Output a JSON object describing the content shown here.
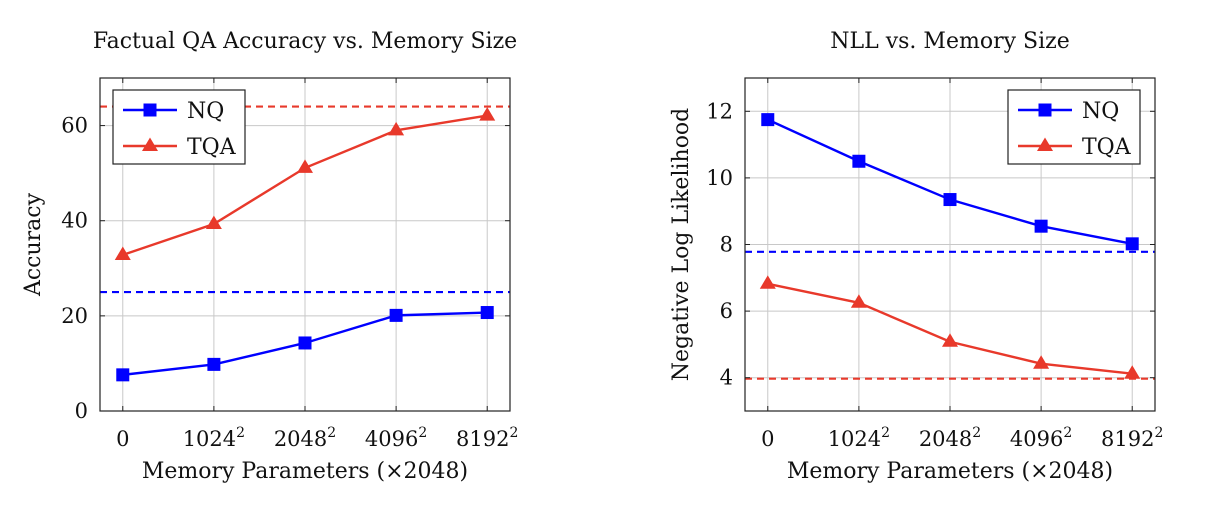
{
  "chart_data": [
    {
      "type": "line",
      "title": "Factual QA Accuracy vs. Memory Size",
      "xlabel": "Memory Parameters (×2048)",
      "ylabel": "Accuracy",
      "categories": [
        {
          "base": "0",
          "sup": ""
        },
        {
          "base": "1024",
          "sup": "2"
        },
        {
          "base": "2048",
          "sup": "2"
        },
        {
          "base": "4096",
          "sup": "2"
        },
        {
          "base": "8192",
          "sup": "2"
        }
      ],
      "ylim": [
        0,
        70
      ],
      "yticks": [
        0,
        20,
        40,
        60
      ],
      "grid": true,
      "legend_position": "top-left",
      "series": [
        {
          "name": "NQ",
          "color": "#0000ff",
          "marker": "square",
          "values": [
            7.6,
            9.8,
            14.3,
            20.1,
            20.7
          ],
          "baseline": 25
        },
        {
          "name": "TQA",
          "color": "#e8392b",
          "marker": "triangle",
          "values": [
            32.8,
            39.3,
            51.1,
            59.0,
            62.1
          ],
          "baseline": 64
        }
      ]
    },
    {
      "type": "line",
      "title": "NLL vs. Memory Size",
      "xlabel": "Memory Parameters (×2048)",
      "ylabel": "Negative Log Likelihood",
      "categories": [
        {
          "base": "0",
          "sup": ""
        },
        {
          "base": "1024",
          "sup": "2"
        },
        {
          "base": "2048",
          "sup": "2"
        },
        {
          "base": "4096",
          "sup": "2"
        },
        {
          "base": "8192",
          "sup": "2"
        }
      ],
      "ylim": [
        3,
        13
      ],
      "yticks": [
        4,
        6,
        8,
        10,
        12
      ],
      "grid": true,
      "legend_position": "top-right",
      "series": [
        {
          "name": "NQ",
          "color": "#0000ff",
          "marker": "square",
          "values": [
            11.75,
            10.5,
            9.35,
            8.55,
            8.02
          ],
          "baseline": 7.78
        },
        {
          "name": "TQA",
          "color": "#e8392b",
          "marker": "triangle",
          "values": [
            6.82,
            6.25,
            5.08,
            4.42,
            4.12
          ],
          "baseline": 3.97
        }
      ]
    }
  ]
}
